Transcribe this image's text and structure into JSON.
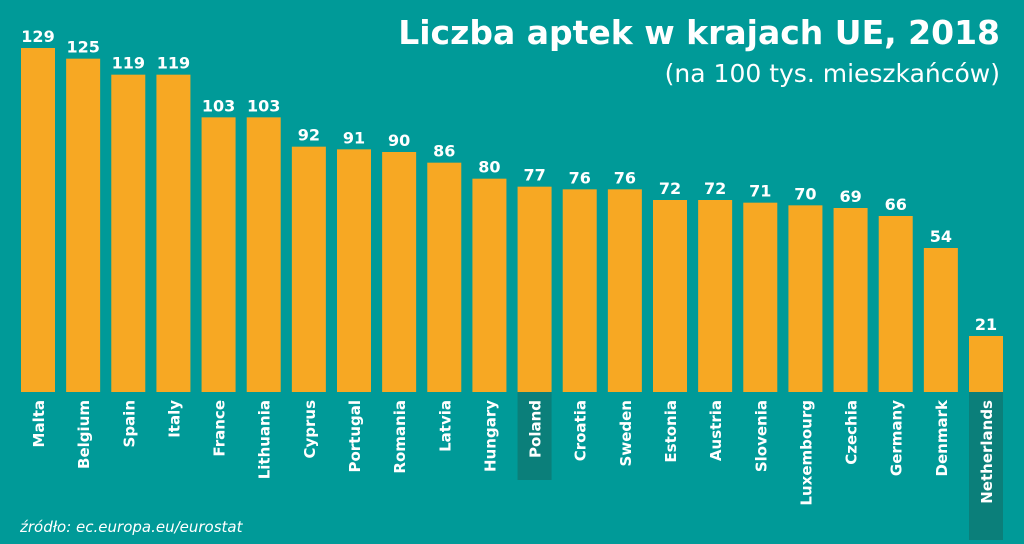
{
  "chart_data": {
    "type": "bar",
    "title": "Liczba aptek w krajach UE, 2018",
    "subtitle": "(na 100 tys. mieszkańców)",
    "categories": [
      "Malta",
      "Belgium",
      "Spain",
      "Italy",
      "France",
      "Lithuania",
      "Cyprus",
      "Portugal",
      "Romania",
      "Latvia",
      "Hungary",
      "Poland",
      "Croatia",
      "Sweden",
      "Estonia",
      "Austria",
      "Slovenia",
      "Luxembourg",
      "Czechia",
      "Germany",
      "Denmark",
      "Netherlands"
    ],
    "values": [
      129,
      125,
      119,
      119,
      103,
      103,
      92,
      91,
      90,
      86,
      80,
      77,
      76,
      76,
      72,
      72,
      71,
      70,
      69,
      66,
      54,
      21
    ],
    "highlight": [
      "Poland",
      "Netherlands"
    ],
    "ylim": [
      0,
      129
    ],
    "grid": false,
    "source": "źródło: ec.europa.eu/eurostat",
    "colors": {
      "background": "#009a98",
      "bar": "#f7a823",
      "text": "#ffffff",
      "highlight_band": "#0b7f7a"
    }
  }
}
